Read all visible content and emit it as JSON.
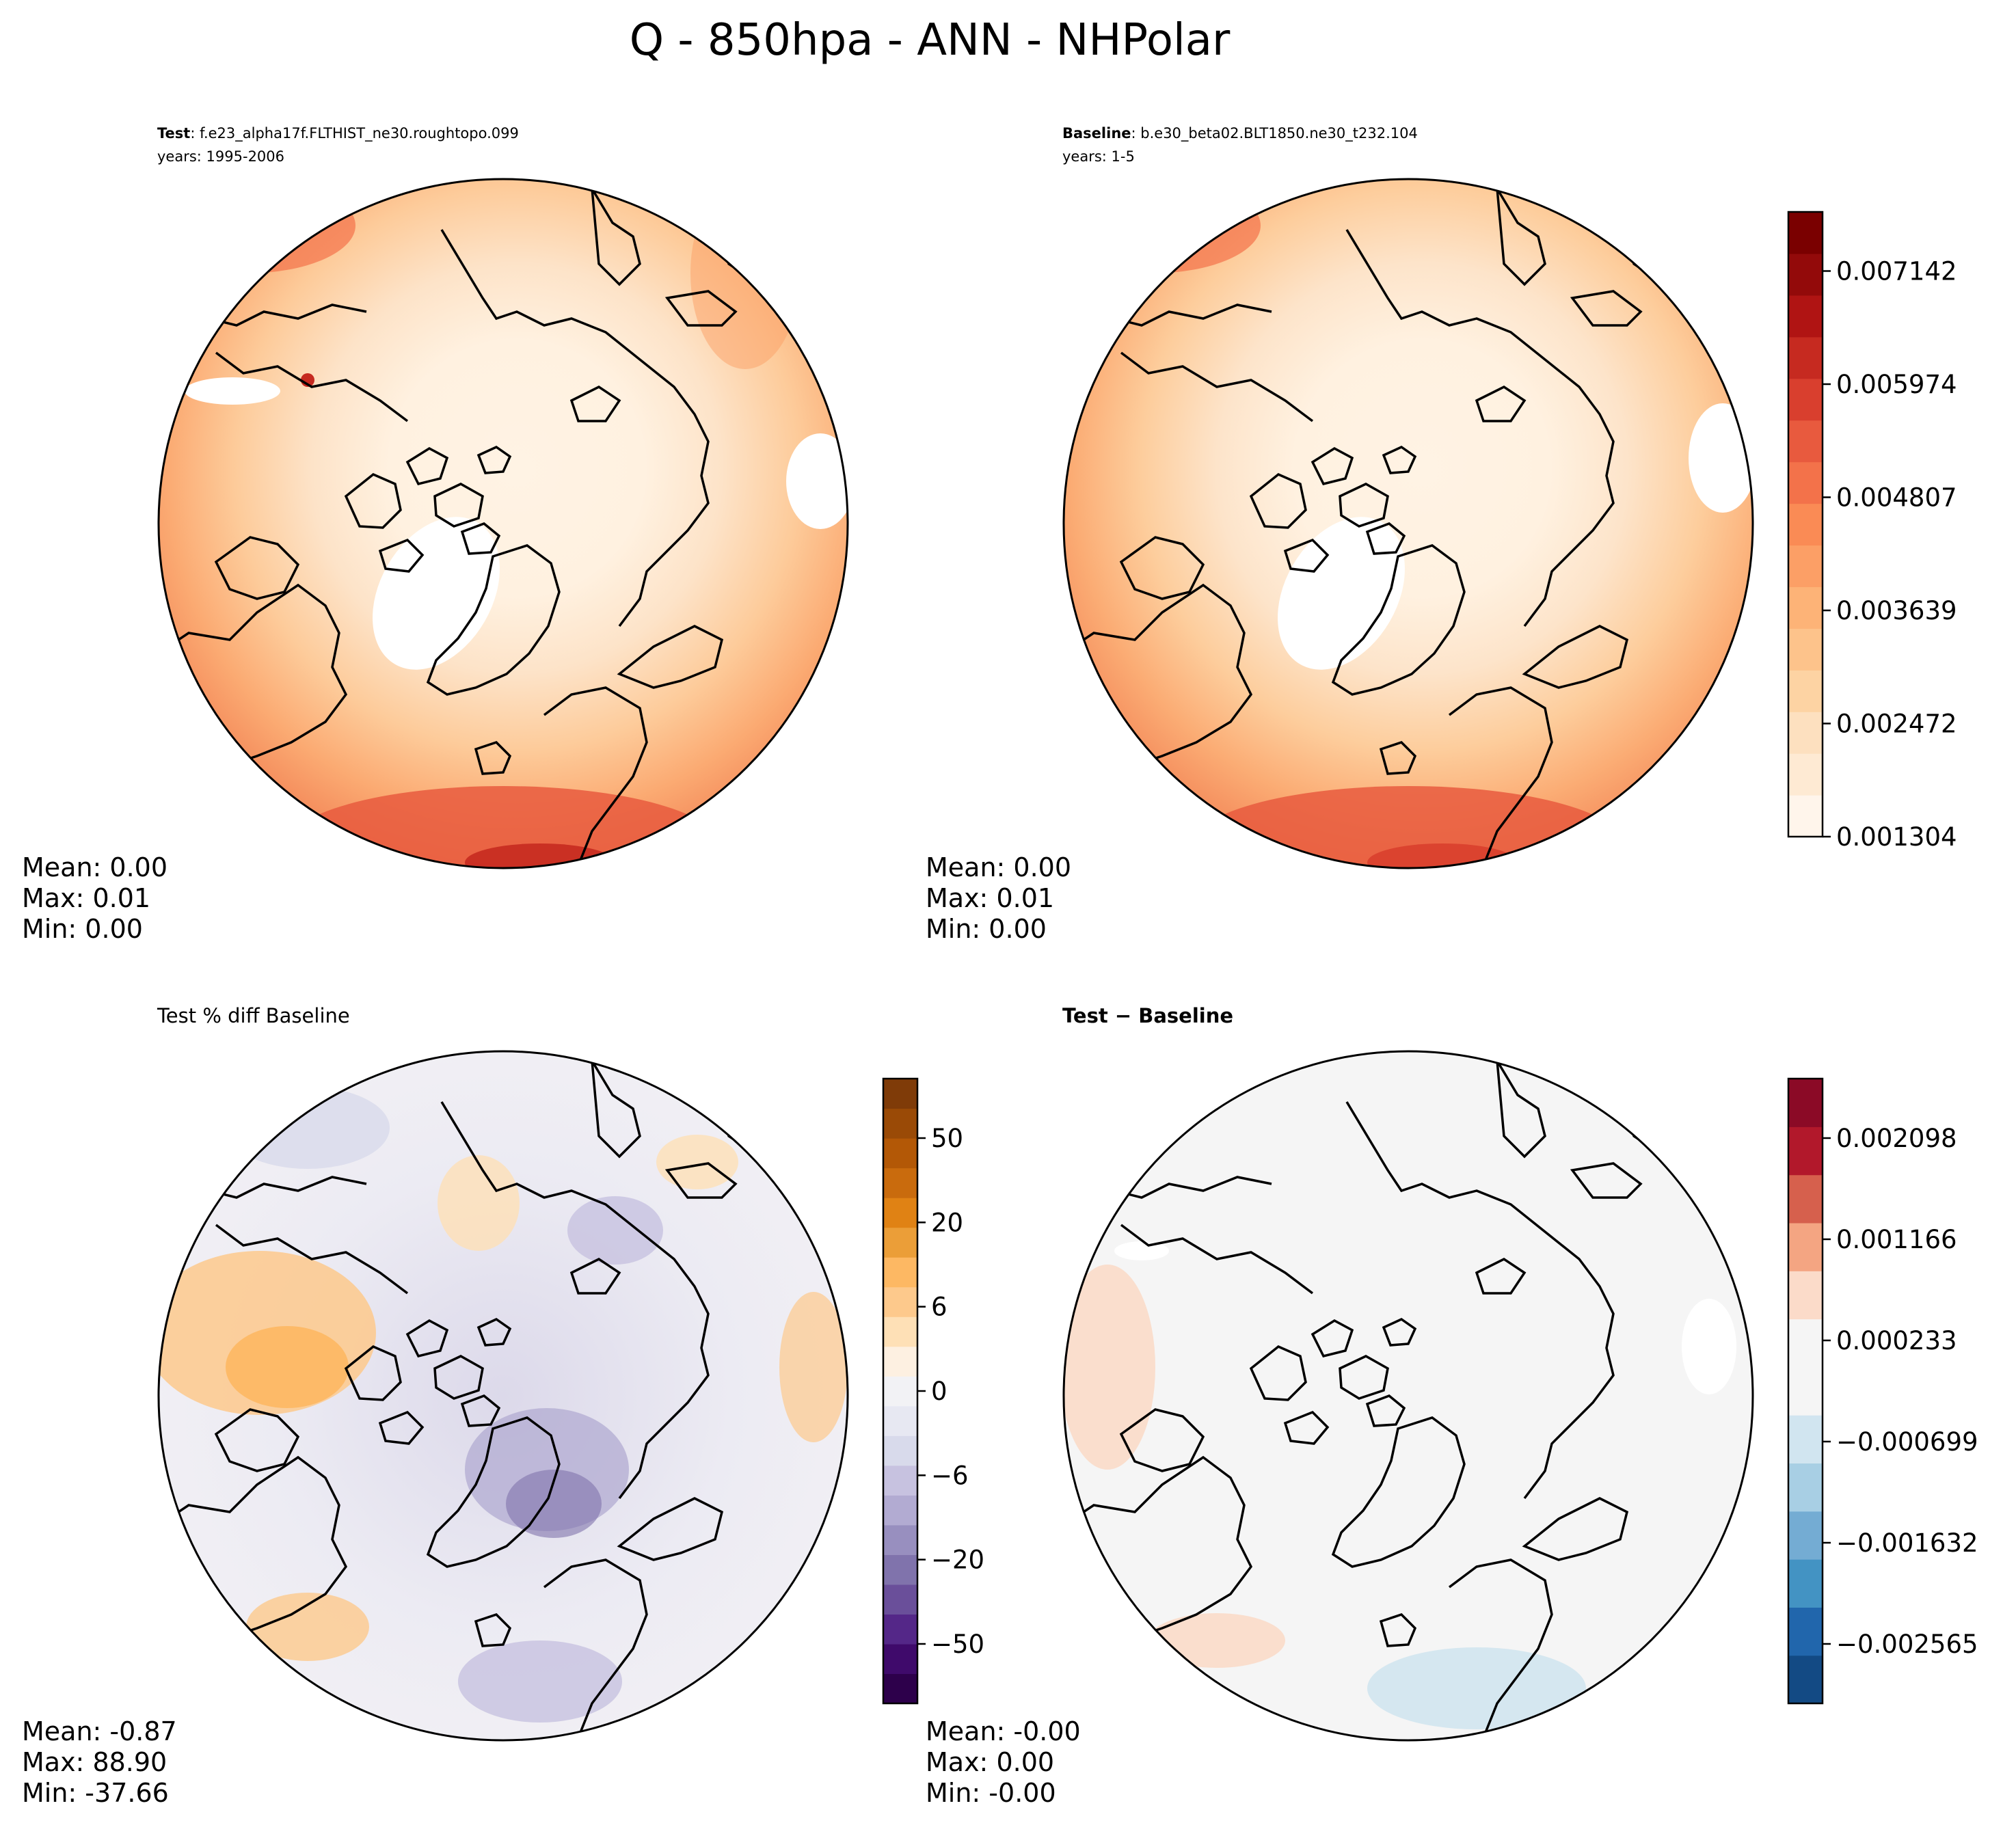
{
  "figure": {
    "title": "Q - 850hpa - ANN - NHPolar"
  },
  "panels": [
    {
      "id": "test",
      "header_bold": "Test",
      "header_text": ": f.e23_alpha17f.FLTHIST_ne30.roughtopo.099",
      "header_line2": "years: 1995-2006",
      "stats": [
        "Mean:  0.00",
        "Max:  0.01",
        "Min:  0.00"
      ]
    },
    {
      "id": "baseline",
      "header_bold": "Baseline",
      "header_text": ": b.e30_beta02.BLT1850.ne30_t232.104",
      "header_line2": "years: 1-5",
      "stats": [
        "Mean:  0.00",
        "Max:  0.01",
        "Min:  0.00"
      ]
    },
    {
      "id": "pctdiff",
      "header_plain": "Test % diff Baseline",
      "stats": [
        "Mean: -0.87",
        "Max: 88.90",
        "Min: -37.66"
      ]
    },
    {
      "id": "diff",
      "header_bold": "Test − Baseline",
      "stats": [
        "Mean: -0.00",
        "Max:  0.00",
        "Min: -0.00"
      ]
    }
  ],
  "colorbars": [
    {
      "id": "abs",
      "colors": [
        "#fff5eb",
        "#feead3",
        "#fde0bf",
        "#fdd3a3",
        "#fdc38b",
        "#fdb377",
        "#fc9f66",
        "#fa8b55",
        "#f3724a",
        "#e85a3e",
        "#d93f2e",
        "#c62a20",
        "#b01413",
        "#930a0a",
        "#7a0000"
      ],
      "tick_labels": [
        "0.001304",
        "0.002472",
        "0.003639",
        "0.004807",
        "0.005974",
        "0.007142"
      ]
    },
    {
      "id": "pct",
      "colors": [
        "#2d004b",
        "#3f0a6b",
        "#542788",
        "#6a4f9a",
        "#8073ac",
        "#988fbf",
        "#b2abd2",
        "#c7c2e0",
        "#d8daeb",
        "#e7e8f2",
        "#f2f2f5",
        "#fdf0e1",
        "#fee0b6",
        "#fdc98c",
        "#fdb863",
        "#eb9e38",
        "#e08214",
        "#c96b0d",
        "#b35806",
        "#9a4a06",
        "#7f3b08"
      ],
      "tick_labels": [
        "−50",
        "−20",
        "−6",
        "0",
        "6",
        "20",
        "50"
      ]
    },
    {
      "id": "diff",
      "colors": [
        "#134a84",
        "#2166ac",
        "#4393c3",
        "#74acd3",
        "#a8cfe4",
        "#d1e5f0",
        "#f5f5f5",
        "#f5f5f5",
        "#fbdbc9",
        "#f4a582",
        "#d6604d",
        "#b2182b",
        "#8b0a26"
      ],
      "tick_labels": [
        "−0.002565",
        "−0.001632",
        "−0.000699",
        "0.000233",
        "0.001166",
        "0.002098"
      ]
    }
  ]
}
